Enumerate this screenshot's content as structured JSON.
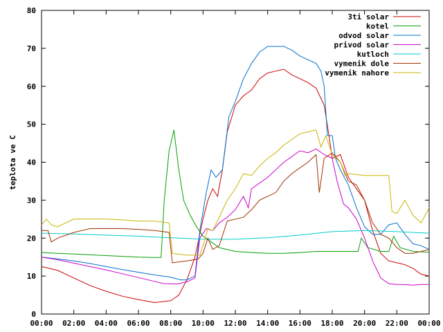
{
  "chart_data": {
    "type": "line",
    "title": "",
    "xlabel": "",
    "ylabel": "teplota ve C",
    "xlim": [
      0,
      24
    ],
    "ylim": [
      0,
      80
    ],
    "grid": false,
    "legend_position": "top-right",
    "x_ticks": [
      "00:00",
      "02:00",
      "04:00",
      "06:00",
      "08:00",
      "10:00",
      "12:00",
      "14:00",
      "16:00",
      "18:00",
      "20:00",
      "22:00",
      "00:00"
    ],
    "y_ticks": [
      "0",
      "10",
      "20",
      "30",
      "40",
      "50",
      "60",
      "70",
      "80"
    ],
    "series": [
      {
        "name": "3ti solar",
        "color": "#cc0000",
        "points": [
          [
            0,
            12.5
          ],
          [
            1,
            11.5
          ],
          [
            2,
            9.5
          ],
          [
            3,
            7.5
          ],
          [
            4,
            6.0
          ],
          [
            5,
            4.7
          ],
          [
            6,
            3.8
          ],
          [
            7,
            3.0
          ],
          [
            8,
            3.5
          ],
          [
            8.5,
            5.0
          ],
          [
            9,
            9.0
          ],
          [
            9.5,
            15.0
          ],
          [
            10,
            25.0
          ],
          [
            10.3,
            30.0
          ],
          [
            10.6,
            33.0
          ],
          [
            10.9,
            31.0
          ],
          [
            11.2,
            38.0
          ],
          [
            11.5,
            48.0
          ],
          [
            12,
            55.0
          ],
          [
            12.5,
            57.5
          ],
          [
            13,
            59.0
          ],
          [
            13.5,
            62.0
          ],
          [
            14,
            63.5
          ],
          [
            14.5,
            64.0
          ],
          [
            15,
            64.5
          ],
          [
            15.5,
            63.0
          ],
          [
            16,
            62.0
          ],
          [
            16.5,
            61.0
          ],
          [
            17,
            59.5
          ],
          [
            17.5,
            55.0
          ],
          [
            17.8,
            47.0
          ],
          [
            18,
            41.0
          ],
          [
            18.5,
            42.0
          ],
          [
            19,
            36.0
          ],
          [
            19.5,
            33.0
          ],
          [
            20,
            30.0
          ],
          [
            20.5,
            22.0
          ],
          [
            21,
            16.0
          ],
          [
            21.5,
            14.0
          ],
          [
            22,
            13.5
          ],
          [
            22.5,
            13.0
          ],
          [
            23,
            12.0
          ],
          [
            23.5,
            10.5
          ],
          [
            24,
            10.0
          ]
        ]
      },
      {
        "name": "kotel",
        "color": "#00a000",
        "points": [
          [
            0,
            16.2
          ],
          [
            1,
            16.0
          ],
          [
            2,
            15.8
          ],
          [
            3,
            15.6
          ],
          [
            4,
            15.4
          ],
          [
            5,
            15.2
          ],
          [
            6,
            15.0
          ],
          [
            7,
            14.9
          ],
          [
            7.4,
            14.9
          ],
          [
            7.6,
            30.0
          ],
          [
            7.9,
            43.0
          ],
          [
            8.2,
            48.5
          ],
          [
            8.5,
            38.0
          ],
          [
            8.8,
            30.0
          ],
          [
            9.2,
            26.0
          ],
          [
            9.6,
            23.0
          ],
          [
            10,
            20.5
          ],
          [
            10.5,
            19.0
          ],
          [
            11,
            17.5
          ],
          [
            12,
            16.5
          ],
          [
            13,
            16.2
          ],
          [
            14,
            16.0
          ],
          [
            15,
            16.0
          ],
          [
            16,
            16.2
          ],
          [
            17,
            16.5
          ],
          [
            18,
            16.5
          ],
          [
            19,
            16.5
          ],
          [
            19.6,
            16.5
          ],
          [
            19.8,
            20.0
          ],
          [
            20.2,
            17.5
          ],
          [
            21,
            16.5
          ],
          [
            21.5,
            16.5
          ],
          [
            21.8,
            20.5
          ],
          [
            22.2,
            17.5
          ],
          [
            23,
            16.5
          ],
          [
            24,
            16.3
          ]
        ]
      },
      {
        "name": "odvod solar",
        "color": "#0070cc",
        "points": [
          [
            0,
            15.0
          ],
          [
            1,
            14.5
          ],
          [
            2,
            14.0
          ],
          [
            3,
            13.3
          ],
          [
            4,
            12.5
          ],
          [
            5,
            11.7
          ],
          [
            6,
            11.0
          ],
          [
            7,
            10.3
          ],
          [
            8,
            9.7
          ],
          [
            8.6,
            9.0
          ],
          [
            9,
            9.0
          ],
          [
            9.5,
            10.0
          ],
          [
            9.8,
            22.0
          ],
          [
            10.2,
            32.0
          ],
          [
            10.5,
            38.0
          ],
          [
            10.8,
            36.0
          ],
          [
            11.2,
            38.0
          ],
          [
            11.6,
            52.0
          ],
          [
            12,
            56.0
          ],
          [
            12.5,
            62.0
          ],
          [
            13,
            66.0
          ],
          [
            13.5,
            69.0
          ],
          [
            14,
            70.5
          ],
          [
            14.5,
            70.5
          ],
          [
            15,
            70.5
          ],
          [
            15.5,
            69.5
          ],
          [
            16,
            68.0
          ],
          [
            16.5,
            67.0
          ],
          [
            17,
            66.0
          ],
          [
            17.3,
            64.0
          ],
          [
            17.5,
            60.0
          ],
          [
            17.7,
            47.0
          ],
          [
            18,
            47.0
          ],
          [
            18.2,
            41.0
          ],
          [
            18.5,
            38.0
          ],
          [
            19,
            34.0
          ],
          [
            19.5,
            28.0
          ],
          [
            20,
            23.0
          ],
          [
            20.5,
            21.0
          ],
          [
            21,
            21.0
          ],
          [
            21.5,
            23.5
          ],
          [
            22,
            24.0
          ],
          [
            22.5,
            21.0
          ],
          [
            23,
            18.5
          ],
          [
            23.5,
            18.0
          ],
          [
            24,
            17.0
          ]
        ]
      },
      {
        "name": "privod solar",
        "color": "#cc00cc",
        "points": [
          [
            0,
            15.0
          ],
          [
            1,
            14.3
          ],
          [
            2,
            13.4
          ],
          [
            3,
            12.5
          ],
          [
            4,
            11.6
          ],
          [
            5,
            10.6
          ],
          [
            6,
            9.6
          ],
          [
            7,
            8.6
          ],
          [
            7.6,
            8.0
          ],
          [
            8.4,
            7.9
          ],
          [
            9,
            8.5
          ],
          [
            9.5,
            9.5
          ],
          [
            9.8,
            20.0
          ],
          [
            10.2,
            22.5
          ],
          [
            10.6,
            22.0
          ],
          [
            11,
            24.0
          ],
          [
            11.5,
            25.5
          ],
          [
            12,
            27.5
          ],
          [
            12.5,
            31.0
          ],
          [
            12.8,
            28.0
          ],
          [
            13,
            33.0
          ],
          [
            13.5,
            34.5
          ],
          [
            14,
            36.0
          ],
          [
            14.5,
            38.0
          ],
          [
            15,
            40.0
          ],
          [
            15.5,
            41.5
          ],
          [
            16,
            43.0
          ],
          [
            16.5,
            42.5
          ],
          [
            17,
            43.5
          ],
          [
            17.5,
            42.0
          ],
          [
            18,
            41.0
          ],
          [
            18.3,
            35.0
          ],
          [
            18.7,
            29.0
          ],
          [
            19,
            28.0
          ],
          [
            19.5,
            25.0
          ],
          [
            20,
            20.0
          ],
          [
            20.5,
            14.0
          ],
          [
            21,
            9.5
          ],
          [
            21.5,
            8.0
          ],
          [
            22,
            7.8
          ],
          [
            22.5,
            7.8
          ],
          [
            23,
            7.6
          ],
          [
            23.5,
            7.8
          ],
          [
            24,
            7.8
          ]
        ]
      },
      {
        "name": "kutloch",
        "color": "#00cccc",
        "points": [
          [
            0,
            21.3
          ],
          [
            2,
            21.1
          ],
          [
            4,
            20.8
          ],
          [
            6,
            20.5
          ],
          [
            8,
            20.1
          ],
          [
            10,
            19.7
          ],
          [
            12,
            19.7
          ],
          [
            14,
            20.1
          ],
          [
            16,
            20.8
          ],
          [
            18,
            21.7
          ],
          [
            20,
            22.0
          ],
          [
            22,
            21.7
          ],
          [
            24,
            21.3
          ]
        ]
      },
      {
        "name": "vymenik dole",
        "color": "#a03000",
        "points": [
          [
            0,
            22.0
          ],
          [
            0.4,
            22.0
          ],
          [
            0.6,
            19.0
          ],
          [
            1,
            20.0
          ],
          [
            2,
            21.5
          ],
          [
            3,
            22.5
          ],
          [
            4,
            22.5
          ],
          [
            5,
            22.5
          ],
          [
            6,
            22.3
          ],
          [
            7,
            22.0
          ],
          [
            7.9,
            21.5
          ],
          [
            8.1,
            13.5
          ],
          [
            9,
            14.0
          ],
          [
            9.7,
            14.5
          ],
          [
            10,
            16.0
          ],
          [
            10.3,
            20.0
          ],
          [
            10.6,
            17.0
          ],
          [
            11,
            18.0
          ],
          [
            11.5,
            24.5
          ],
          [
            12,
            25.0
          ],
          [
            12.5,
            25.5
          ],
          [
            13,
            27.5
          ],
          [
            13.5,
            30.0
          ],
          [
            14,
            31.0
          ],
          [
            14.5,
            32.0
          ],
          [
            15,
            35.0
          ],
          [
            15.5,
            37.0
          ],
          [
            16,
            38.5
          ],
          [
            16.5,
            40.0
          ],
          [
            17,
            42.0
          ],
          [
            17.2,
            32.0
          ],
          [
            17.5,
            41.0
          ],
          [
            18,
            42.5
          ],
          [
            18.5,
            40.0
          ],
          [
            19,
            35.0
          ],
          [
            19.5,
            34.0
          ],
          [
            20,
            30.0
          ],
          [
            20.5,
            24.0
          ],
          [
            21,
            21.0
          ],
          [
            21.5,
            20.0
          ],
          [
            22,
            17.5
          ],
          [
            22.5,
            16.0
          ],
          [
            23,
            16.0
          ],
          [
            23.5,
            16.5
          ],
          [
            24,
            17.0
          ]
        ]
      },
      {
        "name": "vymenik nahore",
        "color": "#c8b400",
        "points": [
          [
            0,
            23.5
          ],
          [
            0.3,
            25.0
          ],
          [
            0.6,
            23.5
          ],
          [
            1,
            23.0
          ],
          [
            2,
            25.0
          ],
          [
            3,
            25.0
          ],
          [
            4,
            25.0
          ],
          [
            5,
            24.8
          ],
          [
            6,
            24.5
          ],
          [
            7,
            24.5
          ],
          [
            7.9,
            24.0
          ],
          [
            8.1,
            16.0
          ],
          [
            9,
            15.5
          ],
          [
            9.8,
            15.5
          ],
          [
            10,
            18.0
          ],
          [
            10.3,
            22.5
          ],
          [
            10.6,
            22.0
          ],
          [
            11,
            25.5
          ],
          [
            11.5,
            30.0
          ],
          [
            12,
            33.0
          ],
          [
            12.5,
            37.0
          ],
          [
            13,
            36.5
          ],
          [
            13.5,
            39.0
          ],
          [
            14,
            41.0
          ],
          [
            14.5,
            42.5
          ],
          [
            15,
            44.5
          ],
          [
            15.5,
            46.0
          ],
          [
            16,
            47.5
          ],
          [
            16.5,
            48.0
          ],
          [
            17,
            48.5
          ],
          [
            17.3,
            44.0
          ],
          [
            17.6,
            47.0
          ],
          [
            18,
            42.0
          ],
          [
            18.5,
            40.0
          ],
          [
            18.8,
            36.5
          ],
          [
            19,
            37.0
          ],
          [
            20,
            36.5
          ],
          [
            21,
            36.5
          ],
          [
            21.5,
            36.5
          ],
          [
            21.7,
            27.0
          ],
          [
            22,
            26.5
          ],
          [
            22.5,
            30.0
          ],
          [
            23,
            26.0
          ],
          [
            23.5,
            24.0
          ],
          [
            24,
            28.0
          ]
        ]
      }
    ]
  }
}
